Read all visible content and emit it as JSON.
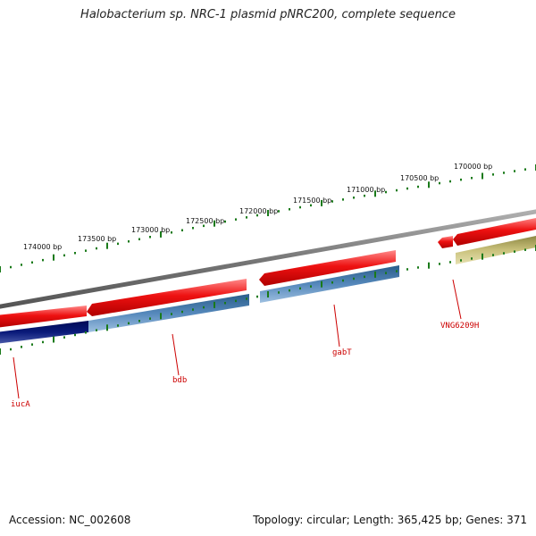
{
  "title": "Halobacterium sp. NRC-1 plasmid pNRC200, complete sequence",
  "footer": {
    "accession": "Accession: NC_002608",
    "summary": "Topology: circular; Length: 365,425 bp; Genes: 371"
  },
  "ruler": {
    "labels": [
      "174000 bp",
      "173500 bp",
      "173000 bp",
      "172500 bp",
      "172000 bp",
      "171500 bp",
      "171000 bp",
      "170500 bp",
      "170000 bp"
    ],
    "tick_color": "#1a7a1a"
  },
  "colors": {
    "backbone": "#808080",
    "forward_gene": "#ee1111",
    "reverse_gene": "#5588bb",
    "reverse_gene_dark": "#0a1a7a",
    "hypothetical": "#c8c07a",
    "label": "#cc0000"
  },
  "gene_labels": [
    "iucA",
    "bdb",
    "gabT",
    "VNG6209H"
  ]
}
